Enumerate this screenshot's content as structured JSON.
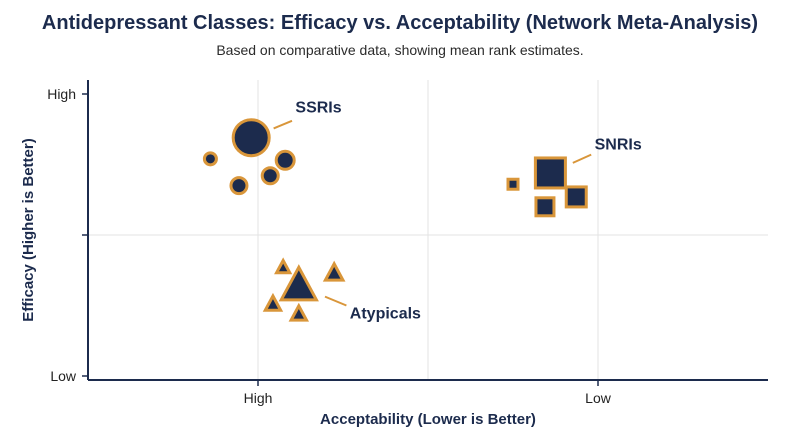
{
  "title": "Antidepressant Classes: Efficacy vs. Acceptability (Network Meta-Analysis)",
  "subtitle": "Based on comparative data, showing mean rank estimates.",
  "colors": {
    "marker_fill": "#1c2b4d",
    "marker_edge": "#d9963a",
    "axis": "#1c2b4d",
    "grid": "#e3e3e3",
    "text": "#1c2b4d"
  },
  "chart_data": {
    "type": "scatter",
    "xlabel": "Acceptability (Lower is Better)",
    "ylabel": "Efficacy (Higher is Better)",
    "xlim": [
      0,
      1
    ],
    "ylim": [
      0,
      1
    ],
    "x_ticks": [
      {
        "value": 0.25,
        "label": "High"
      },
      {
        "value": 0.75,
        "label": "Low"
      }
    ],
    "y_ticks": [
      {
        "value": 0.0,
        "label": "Low"
      },
      {
        "value": 0.5,
        "label": ""
      },
      {
        "value": 1.0,
        "label": "High"
      }
    ],
    "grid": true,
    "series": [
      {
        "name": "SSRIs",
        "marker": "circle",
        "label": "SSRIs",
        "label_pos": {
          "x": 0.305,
          "y": 0.955
        },
        "pointer": {
          "x": 0.3,
          "y": 0.905
        },
        "points": [
          {
            "x": 0.24,
            "y": 0.845,
            "size": 18
          },
          {
            "x": 0.18,
            "y": 0.77,
            "size": 6
          },
          {
            "x": 0.29,
            "y": 0.765,
            "size": 9
          },
          {
            "x": 0.268,
            "y": 0.71,
            "size": 8
          },
          {
            "x": 0.222,
            "y": 0.675,
            "size": 8
          }
        ]
      },
      {
        "name": "SNRIs",
        "marker": "square",
        "label": "SNRIs",
        "label_pos": {
          "x": 0.745,
          "y": 0.825
        },
        "pointer": {
          "x": 0.74,
          "y": 0.785
        },
        "points": [
          {
            "x": 0.68,
            "y": 0.72,
            "size": 15
          },
          {
            "x": 0.625,
            "y": 0.68,
            "size": 5
          },
          {
            "x": 0.718,
            "y": 0.635,
            "size": 10
          },
          {
            "x": 0.672,
            "y": 0.6,
            "size": 9
          }
        ]
      },
      {
        "name": "Atypicals",
        "marker": "triangle",
        "label": "Atypicals",
        "label_pos": {
          "x": 0.385,
          "y": 0.225
        },
        "pointer": {
          "x": 0.38,
          "y": 0.25
        },
        "points": [
          {
            "x": 0.31,
            "y": 0.32,
            "size": 16
          },
          {
            "x": 0.287,
            "y": 0.385,
            "size": 6
          },
          {
            "x": 0.362,
            "y": 0.365,
            "size": 8
          },
          {
            "x": 0.272,
            "y": 0.255,
            "size": 7
          },
          {
            "x": 0.31,
            "y": 0.22,
            "size": 7
          }
        ]
      }
    ]
  }
}
